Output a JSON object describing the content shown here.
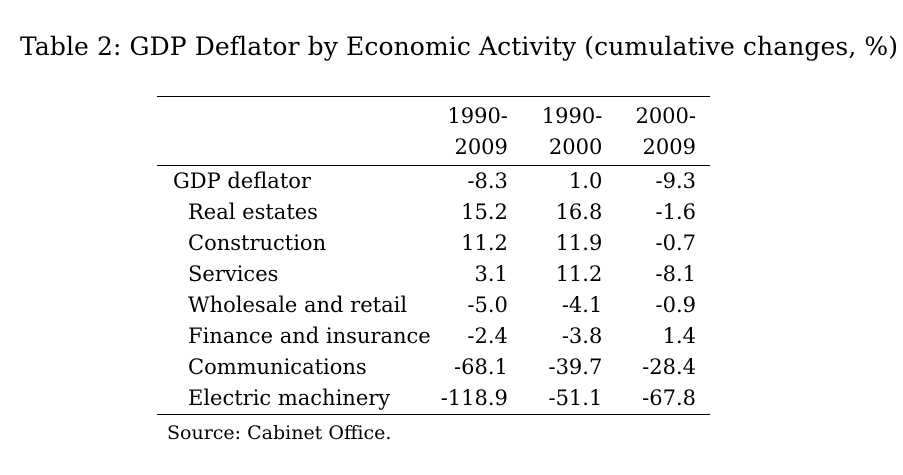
{
  "caption": "Table 2: GDP Deflator by Economic Activity (cumulative changes, %)",
  "table": {
    "columns": [
      {
        "line1": "1990-",
        "line2": "2009"
      },
      {
        "line1": "1990-",
        "line2": "2000"
      },
      {
        "line1": "2000-",
        "line2": "2009"
      }
    ],
    "rows": [
      {
        "label": "GDP deflator",
        "values": [
          "-8.3",
          "1.0",
          "-9.3"
        ]
      },
      {
        "label": "Real estates",
        "values": [
          "15.2",
          "16.8",
          "-1.6"
        ]
      },
      {
        "label": "Construction",
        "values": [
          "11.2",
          "11.9",
          "-0.7"
        ]
      },
      {
        "label": "Services",
        "values": [
          "3.1",
          "11.2",
          "-8.1"
        ]
      },
      {
        "label": "Wholesale and retail",
        "values": [
          "-5.0",
          "-4.1",
          "-0.9"
        ]
      },
      {
        "label": "Finance and insurance",
        "values": [
          "-2.4",
          "-3.8",
          "1.4"
        ]
      },
      {
        "label": "Communications",
        "values": [
          "-68.1",
          "-39.7",
          "-28.4"
        ]
      },
      {
        "label": "Electric machinery",
        "values": [
          "-118.9",
          "-51.1",
          "-67.8"
        ]
      }
    ]
  },
  "source": "Source:  Cabinet Office."
}
